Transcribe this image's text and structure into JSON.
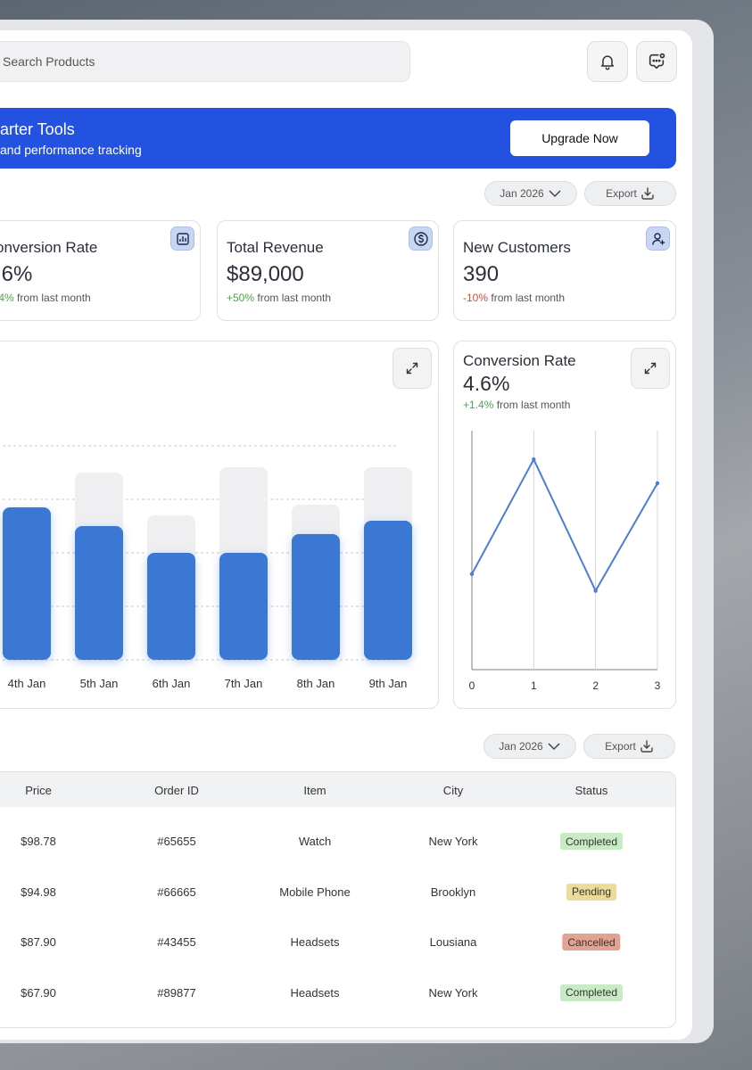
{
  "search": {
    "placeholder": "Search Products"
  },
  "header": {
    "notification_icon": "bell-icon",
    "chat_icon": "chat-notification-icon"
  },
  "banner": {
    "title": "arter Tools",
    "subtitle": "and performance tracking",
    "button": "Upgrade Now"
  },
  "filters": {
    "month": "Jan 2026",
    "export": "Export"
  },
  "stats": [
    {
      "title": "onversion Rate",
      "value": ".6%",
      "change": ".4%",
      "change_suffix": "from last month",
      "trend": "up",
      "icon": "bar-chart-icon"
    },
    {
      "title": "Total Revenue",
      "value": "$89,000",
      "change": "+50%",
      "change_suffix": "from last month",
      "trend": "up",
      "icon": "dollar-icon"
    },
    {
      "title": "New Customers",
      "value": "390",
      "change": "-10%",
      "change_suffix": "from last month",
      "trend": "down",
      "icon": "user-add-icon"
    }
  ],
  "bar_chart": {
    "chart_data": {
      "type": "bar",
      "categories": [
        "4th Jan",
        "5th Jan",
        "6th Jan",
        "7th Jan",
        "8th Jan",
        "9th Jan"
      ],
      "series": [
        {
          "values": [
            57,
            50,
            40,
            40,
            47,
            52
          ]
        },
        {
          "values": [
            57,
            70,
            54,
            72,
            58,
            72
          ]
        }
      ],
      "ylim": [
        0,
        80
      ],
      "grid": true
    }
  },
  "line_chart": {
    "title": "Conversion Rate",
    "value": "4.6%",
    "change": "+1.4%",
    "change_suffix": "from last month",
    "chart_data": {
      "type": "line",
      "x": [
        0,
        1,
        2,
        3
      ],
      "y": [
        4.0,
        8.8,
        3.3,
        7.8
      ],
      "ylim": [
        0,
        10
      ],
      "grid": true
    }
  },
  "table": {
    "columns": [
      "Price",
      "Order ID",
      "Item",
      "City",
      "Status"
    ],
    "rows": [
      {
        "price": "$98.78",
        "order_id": "#65655",
        "item": "Watch",
        "city": "New York",
        "status": "Completed"
      },
      {
        "price": "$94.98",
        "order_id": "#66665",
        "item": "Mobile Phone",
        "city": "Brooklyn",
        "status": "Pending"
      },
      {
        "price": "$87.90",
        "order_id": "#43455",
        "item": "Headsets",
        "city": "Lousiana",
        "status": "Cancelled"
      },
      {
        "price": "$67.90",
        "order_id": "#89877",
        "item": "Headsets",
        "city": "New York",
        "status": "Completed"
      }
    ]
  },
  "colors": {
    "accent": "#2452e0",
    "bar": "#3a78d4",
    "bar_bg": "#efeff1",
    "completed": "#c8ebc6",
    "pending": "#ecdc98",
    "cancelled": "#e3a393"
  }
}
